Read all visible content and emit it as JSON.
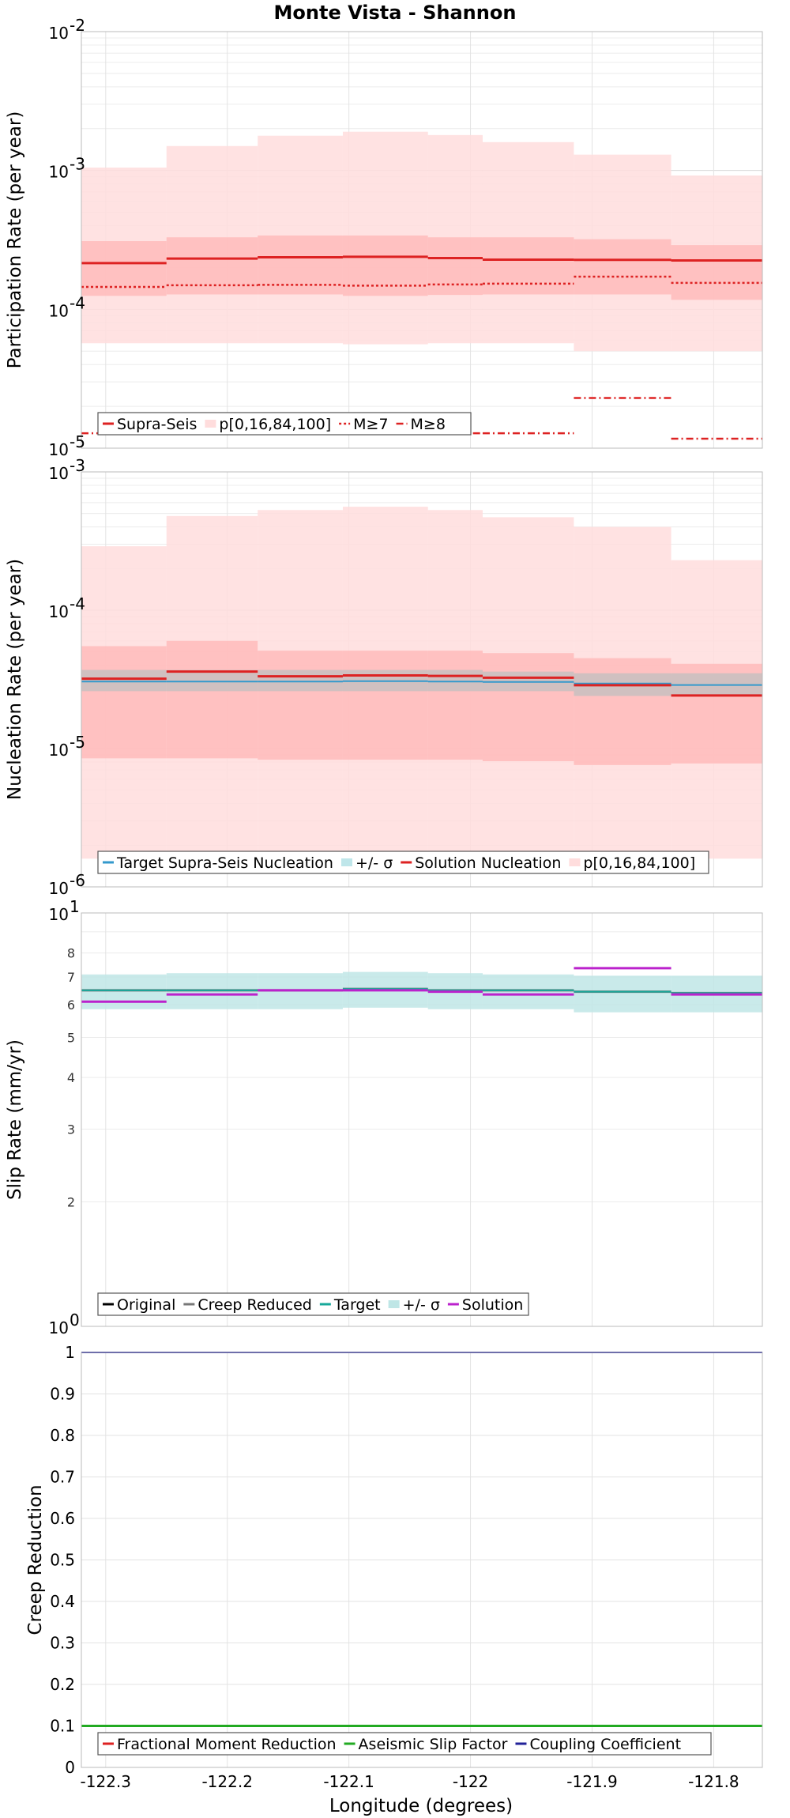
{
  "figure": {
    "title": "Monte Vista - Shannon",
    "xlabel": "Longitude (degrees)"
  },
  "chart_data": [
    {
      "type": "line",
      "id": "participation",
      "ylabel": "Participation Rate (per year)",
      "yscale": "log",
      "xlim": [
        -122.32,
        -121.76
      ],
      "ylim": [
        1e-05,
        0.01
      ],
      "xticks": [
        "-122.3",
        "-122.2",
        "-122.1",
        "-122",
        "-121.9",
        "-121.8"
      ],
      "yticks": [
        {
          "base": "10",
          "exp": "-5"
        },
        {
          "base": "10",
          "exp": "-4"
        },
        {
          "base": "10",
          "exp": "-3"
        },
        {
          "base": "10",
          "exp": "-2"
        }
      ],
      "x_edges": [
        -122.32,
        -122.25,
        -122.175,
        -122.105,
        -122.035,
        -121.99,
        -121.915,
        -121.835,
        -121.76
      ],
      "bands": [
        {
          "name": "p[0,16,84,100]",
          "color": "#ffdddd",
          "low": [
            5.7e-05,
            5.7e-05,
            5.7e-05,
            5.6e-05,
            5.7e-05,
            5.7e-05,
            5e-05,
            5e-05
          ],
          "high": [
            0.00105,
            0.0015,
            0.00178,
            0.0019,
            0.0018,
            0.0016,
            0.0013,
            0.00092
          ]
        },
        {
          "name": "p16-84",
          "color": "#ffbbbb",
          "low": [
            0.000125,
            0.000128,
            0.000128,
            0.000125,
            0.000127,
            0.000128,
            0.000128,
            0.000117
          ],
          "high": [
            0.00031,
            0.00033,
            0.00034,
            0.00034,
            0.00033,
            0.00033,
            0.00032,
            0.00029
          ]
        }
      ],
      "series": [
        {
          "name": "Supra-Seis",
          "color": "#dd2222",
          "dash": "none",
          "width": 3,
          "values": [
            0.000215,
            0.000232,
            0.000237,
            0.000239,
            0.000234,
            0.000228,
            0.000227,
            0.000225
          ]
        },
        {
          "name": "M≥7",
          "color": "#dd2222",
          "dash": "3,3",
          "width": 2.5,
          "values": [
            0.000145,
            0.000149,
            0.00015,
            0.000148,
            0.000151,
            0.000153,
            0.000172,
            0.000155
          ]
        },
        {
          "name": "M≥8",
          "color": "#dd2222",
          "dash": "9,4,2,4",
          "width": 2.5,
          "values": [
            1.28e-05,
            1.28e-05,
            1.28e-05,
            1.28e-05,
            1.28e-05,
            1.28e-05,
            2.3e-05,
            1.17e-05
          ]
        }
      ],
      "legend": [
        {
          "label": "Supra-Seis",
          "color": "#dd2222",
          "type": "line",
          "dash": "none"
        },
        {
          "label": "p[0,16,84,100]",
          "color": "#ffdddd",
          "type": "fill"
        },
        {
          "label": "M≥7",
          "color": "#dd2222",
          "type": "line",
          "dash": "3,3"
        },
        {
          "label": "M≥8",
          "color": "#dd2222",
          "type": "line",
          "dash": "9,4,2,4"
        }
      ]
    },
    {
      "type": "line",
      "id": "nucleation",
      "ylabel": "Nucleation Rate (per year)",
      "yscale": "log",
      "xlim": [
        -122.32,
        -121.76
      ],
      "ylim": [
        1e-06,
        0.001
      ],
      "xticks": [
        "-122.3",
        "-122.2",
        "-122.1",
        "-122",
        "-121.9",
        "-121.8"
      ],
      "yticks": [
        {
          "base": "10",
          "exp": "-6"
        },
        {
          "base": "10",
          "exp": "-5"
        },
        {
          "base": "10",
          "exp": "-4"
        },
        {
          "base": "10",
          "exp": "-3"
        }
      ],
      "x_edges": [
        -122.32,
        -122.25,
        -122.175,
        -122.105,
        -122.035,
        -121.99,
        -121.915,
        -121.835,
        -121.76
      ],
      "bands": [
        {
          "name": "p[0,16,84,100]",
          "color": "#ffdddd",
          "low": [
            1.6e-06,
            1.6e-06,
            1.6e-06,
            1.6e-06,
            1.6e-06,
            1.6e-06,
            1.6e-06,
            1.6e-06
          ],
          "high": [
            0.00029,
            0.00048,
            0.00053,
            0.00056,
            0.00053,
            0.00047,
            0.0004,
            0.00023
          ]
        },
        {
          "name": "p16-84",
          "color": "#ffbbbb",
          "low": [
            8.5e-06,
            8.5e-06,
            8.3e-06,
            8.3e-06,
            8.3e-06,
            8.1e-06,
            7.6e-06,
            7.8e-06
          ],
          "high": [
            5.5e-05,
            6e-05,
            5.1e-05,
            5.1e-05,
            5.1e-05,
            4.9e-05,
            4.5e-05,
            4.1e-05
          ]
        },
        {
          "name": "+/- σ",
          "color": "#c8c0c0",
          "low": [
            2.6e-05,
            2.6e-05,
            2.6e-05,
            2.6e-05,
            2.6e-05,
            2.6e-05,
            2.4e-05,
            2.4e-05
          ],
          "high": [
            3.7e-05,
            3.7e-05,
            3.7e-05,
            3.7e-05,
            3.7e-05,
            3.6e-05,
            3.5e-05,
            3.5e-05
          ]
        }
      ],
      "series": [
        {
          "name": "Target Supra-Seis Nucleation",
          "color": "#3399cc",
          "dash": "none",
          "width": 2,
          "values": [
            3.05e-05,
            3.05e-05,
            3.05e-05,
            3.07e-05,
            3.05e-05,
            3.03e-05,
            2.95e-05,
            2.88e-05
          ]
        },
        {
          "name": "Solution Nucleation",
          "color": "#dd2222",
          "dash": "none",
          "width": 3,
          "values": [
            3.2e-05,
            3.6e-05,
            3.33e-05,
            3.38e-05,
            3.35e-05,
            3.25e-05,
            2.87e-05,
            2.42e-05
          ]
        }
      ],
      "legend": [
        {
          "label": "Target Supra-Seis Nucleation",
          "color": "#3399cc",
          "type": "line",
          "dash": "none"
        },
        {
          "label": "+/- σ",
          "color": "#bfe6ea",
          "type": "fill"
        },
        {
          "label": "Solution Nucleation",
          "color": "#dd2222",
          "type": "line",
          "dash": "none"
        },
        {
          "label": "p[0,16,84,100]",
          "color": "#ffdddd",
          "type": "fill"
        }
      ]
    },
    {
      "type": "line",
      "id": "slip",
      "ylabel": "Slip Rate (mm/yr)",
      "yscale": "log",
      "xlim": [
        -122.32,
        -121.76
      ],
      "ylim": [
        1,
        10
      ],
      "xticks": [
        "-122.3",
        "-122.2",
        "-122.1",
        "-122",
        "-121.9",
        "-121.8"
      ],
      "yticks": [
        {
          "base": "10",
          "exp": "1"
        },
        {
          "base": "10",
          "exp": "0"
        }
      ],
      "yticks_minor": [
        "2",
        "3",
        "4",
        "5",
        "6",
        "7",
        "8"
      ],
      "x_edges": [
        -122.32,
        -122.25,
        -122.175,
        -122.105,
        -122.035,
        -121.99,
        -121.915,
        -121.835,
        -121.76
      ],
      "bands": [
        {
          "name": "+/- σ",
          "color": "#bfe6e6",
          "low": [
            5.85,
            5.85,
            5.85,
            5.9,
            5.85,
            5.85,
            5.75,
            5.75
          ],
          "high": [
            7.1,
            7.15,
            7.15,
            7.2,
            7.15,
            7.1,
            7.05,
            7.05
          ]
        }
      ],
      "series": [
        {
          "name": "Creep Reduced",
          "color": "#777777",
          "dash": "none",
          "width": 3,
          "values": [
            6.5,
            6.5,
            6.5,
            6.55,
            6.5,
            6.5,
            6.45,
            6.4
          ]
        },
        {
          "name": "Target",
          "color": "#17a89a",
          "dash": "none",
          "width": 2,
          "values": [
            6.5,
            6.5,
            6.5,
            6.55,
            6.5,
            6.5,
            6.45,
            6.4
          ]
        },
        {
          "name": "Solution",
          "color": "#bb22cc",
          "dash": "none",
          "width": 3,
          "values": [
            6.1,
            6.35,
            6.5,
            6.5,
            6.45,
            6.35,
            7.35,
            6.35
          ]
        }
      ],
      "legend": [
        {
          "label": "Original",
          "color": "#000000",
          "type": "line",
          "dash": "none"
        },
        {
          "label": "Creep Reduced",
          "color": "#777777",
          "type": "line",
          "dash": "none"
        },
        {
          "label": "Target",
          "color": "#17a89a",
          "type": "line",
          "dash": "none"
        },
        {
          "label": "+/- σ",
          "color": "#bfe6e6",
          "type": "fill"
        },
        {
          "label": "Solution",
          "color": "#bb22cc",
          "type": "line",
          "dash": "none"
        }
      ]
    },
    {
      "type": "line",
      "id": "creep",
      "ylabel": "Creep Reduction",
      "yscale": "linear",
      "xlim": [
        -122.32,
        -121.76
      ],
      "ylim": [
        0,
        1
      ],
      "xticks": [
        "-122.3",
        "-122.2",
        "-122.1",
        "-122",
        "-121.9",
        "-121.8"
      ],
      "yticks_linear": [
        "0",
        "0.1",
        "0.2",
        "0.3",
        "0.4",
        "0.5",
        "0.6",
        "0.7",
        "0.8",
        "0.9",
        "1"
      ],
      "x_edges": [
        -122.32,
        -121.76
      ],
      "bands": [],
      "series": [
        {
          "name": "Coupling Coefficient",
          "color": "#222299",
          "dash": "none",
          "width": 2,
          "values": [
            1
          ]
        },
        {
          "name": "Aseismic Slip Factor",
          "color": "#22aa22",
          "dash": "none",
          "width": 3,
          "values": [
            0.1
          ]
        }
      ],
      "legend": [
        {
          "label": "Fractional Moment Reduction",
          "color": "#dd2222",
          "type": "line",
          "dash": "none"
        },
        {
          "label": "Aseismic Slip Factor",
          "color": "#22aa22",
          "type": "line",
          "dash": "none"
        },
        {
          "label": "Coupling Coefficient",
          "color": "#222299",
          "type": "line",
          "dash": "none"
        }
      ]
    }
  ]
}
